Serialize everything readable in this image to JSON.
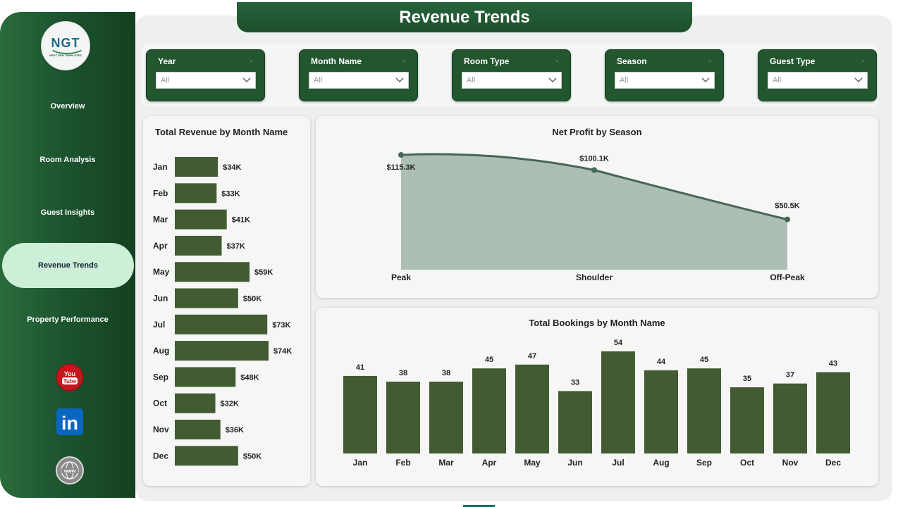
{
  "app": {
    "title": "Revenue Trends",
    "logo_text": "NGT",
    "logo_subtext": "NEXT GEN TEMPLATES",
    "colors": {
      "brand_dark": "#1d5530",
      "bar": "#425b32",
      "area_fill": "#adbfb5",
      "area_line": "#456757",
      "active_nav": "#cdeed7"
    }
  },
  "sidebar": {
    "items": [
      {
        "label": "Overview",
        "active": false
      },
      {
        "label": "Room Analysis",
        "active": false
      },
      {
        "label": "Guest Insights",
        "active": false
      },
      {
        "label": "Revenue Trends",
        "active": true
      },
      {
        "label": "Property Performance",
        "active": false
      }
    ],
    "social": [
      {
        "icon": "youtube-icon",
        "text": "You Tube"
      },
      {
        "icon": "linkedin-icon",
        "text": "in"
      },
      {
        "icon": "website-icon",
        "text": "www"
      }
    ]
  },
  "filters": [
    {
      "label": "Year",
      "value": "All"
    },
    {
      "label": "Month Name",
      "value": "All"
    },
    {
      "label": "Room Type",
      "value": "All"
    },
    {
      "label": "Season",
      "value": "All"
    },
    {
      "label": "Guest Type",
      "value": "All"
    }
  ],
  "chart_data": [
    {
      "id": "revenue",
      "type": "bar",
      "orientation": "horizontal",
      "title": "Total Revenue by Month Name",
      "categories": [
        "Jan",
        "Feb",
        "Mar",
        "Apr",
        "May",
        "Jun",
        "Jul",
        "Aug",
        "Sep",
        "Oct",
        "Nov",
        "Dec"
      ],
      "values": [
        34,
        33,
        41,
        37,
        59,
        50,
        73,
        74,
        48,
        32,
        36,
        50
      ],
      "value_labels": [
        "$34K",
        "$33K",
        "$41K",
        "$37K",
        "$59K",
        "$50K",
        "$73K",
        "$74K",
        "$48K",
        "$32K",
        "$36K",
        "$50K"
      ],
      "unit": "$K",
      "grid": false,
      "color": "#425b32"
    },
    {
      "id": "profit",
      "type": "area",
      "title": "Net Profit by Season",
      "categories": [
        "Peak",
        "Shoulder",
        "Off-Peak"
      ],
      "values": [
        115.3,
        100.1,
        50.5
      ],
      "value_labels": [
        "$115.3K",
        "$100.1K",
        "$50.5K"
      ],
      "unit": "$K",
      "grid": false,
      "color": "#456757"
    },
    {
      "id": "bookings",
      "type": "bar",
      "orientation": "vertical",
      "title": "Total Bookings by Month Name",
      "categories": [
        "Jan",
        "Feb",
        "Mar",
        "Apr",
        "May",
        "Jun",
        "Jul",
        "Aug",
        "Sep",
        "Oct",
        "Nov",
        "Dec"
      ],
      "values": [
        41,
        38,
        38,
        45,
        47,
        33,
        54,
        44,
        45,
        35,
        37,
        43
      ],
      "grid": false,
      "color": "#425b32"
    }
  ]
}
